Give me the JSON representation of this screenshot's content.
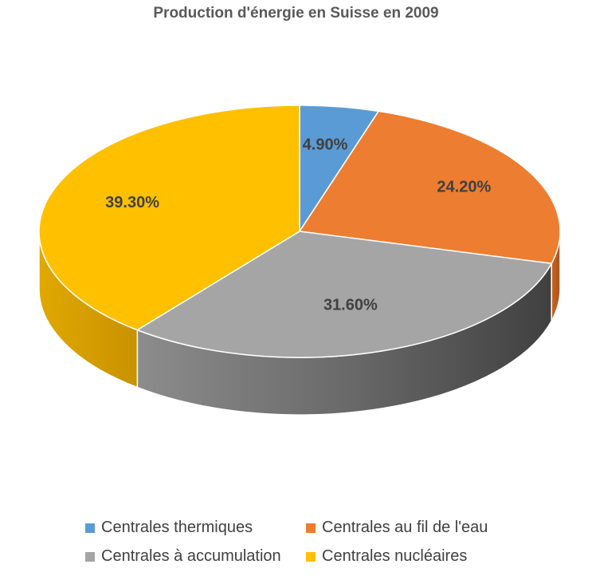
{
  "chart_data": {
    "type": "pie",
    "title": "Production d'énergie en Suisse en 2009",
    "categories": [
      "Centrales thermiques",
      "Centrales au fil de l'eau",
      "Centrales à accumulation",
      "Centrales nucléaires"
    ],
    "values": [
      4.9,
      24.2,
      31.6,
      39.3
    ],
    "data_labels": [
      "4.90%",
      "24.20%",
      "31.60%",
      "39.30%"
    ],
    "colors": [
      "#5B9BD5",
      "#ED7D31",
      "#A5A5A5",
      "#FFC000"
    ],
    "legend_position": "bottom",
    "style": "3d"
  }
}
